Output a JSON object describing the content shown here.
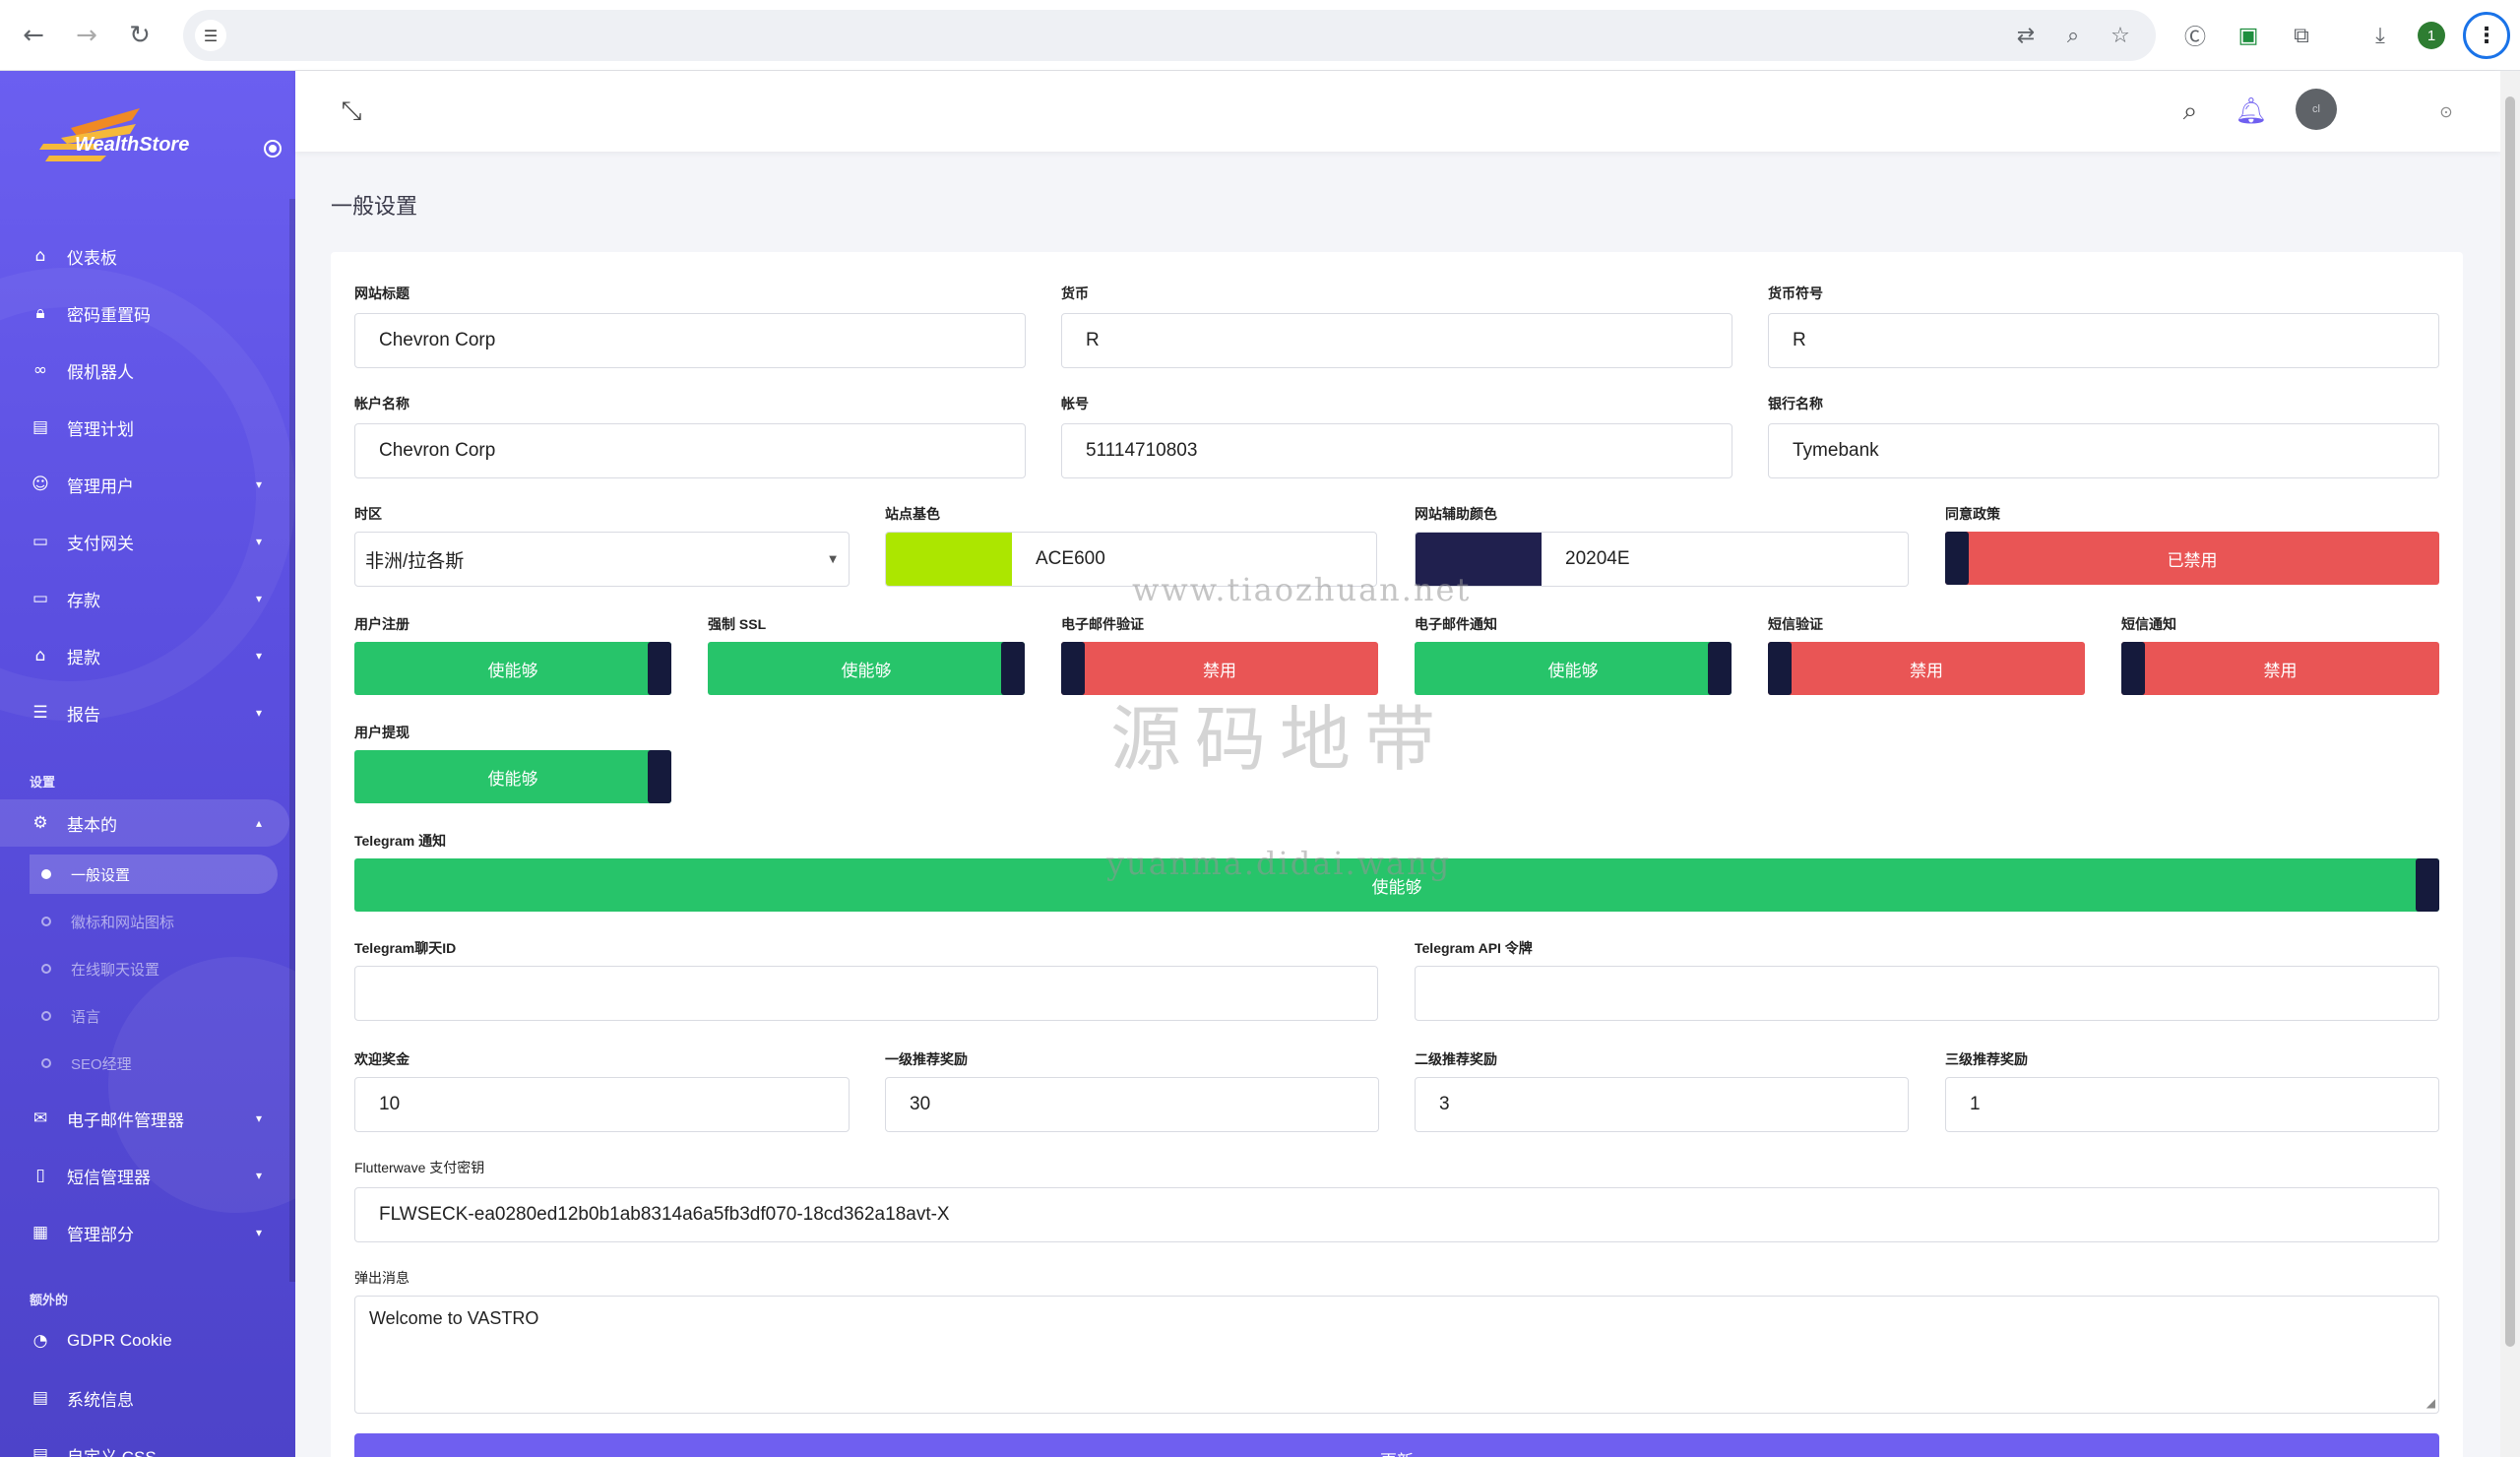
{
  "browser": {
    "back_icon": "arrow-left-icon",
    "forward_icon": "arrow-right-icon",
    "reload_icon": "reload-icon",
    "profile_initial": "1"
  },
  "sidebar": {
    "brand": "WealthStore",
    "items": [
      {
        "label": "仪表板",
        "icon": "home-icon"
      },
      {
        "label": "密码重置码",
        "icon": "lock-icon"
      },
      {
        "label": "假机器人",
        "icon": "link-icon"
      },
      {
        "label": "管理计划",
        "icon": "plan-icon"
      },
      {
        "label": "管理用户",
        "icon": "users-icon"
      },
      {
        "label": "支付网关",
        "icon": "card-icon"
      },
      {
        "label": "存款",
        "icon": "wallet-icon"
      },
      {
        "label": "提款",
        "icon": "bank-icon"
      },
      {
        "label": "报告",
        "icon": "list-icon"
      }
    ],
    "section_settings": "设置",
    "settings_parent": "基本的",
    "settings_sub": [
      "一般设置",
      "徽标和网站图标",
      "在线聊天设置",
      "语言",
      "SEO经理"
    ],
    "more_items": [
      {
        "label": "电子邮件管理器",
        "icon": "mail-icon"
      },
      {
        "label": "短信管理器",
        "icon": "phone-icon"
      },
      {
        "label": "管理部分",
        "icon": "section-icon"
      }
    ],
    "section_extra": "额外的",
    "extra_items": [
      {
        "label": "GDPR Cookie",
        "icon": "cookie-icon"
      },
      {
        "label": "系统信息",
        "icon": "info-icon"
      },
      {
        "label": "自定义 CSS",
        "icon": "css-icon"
      }
    ]
  },
  "header": {
    "avatar_text": "cl"
  },
  "page": {
    "title": "一般设置"
  },
  "form": {
    "site_title_label": "网站标题",
    "site_title": "Chevron Corp",
    "currency_label": "货币",
    "currency": "R",
    "currency_symbol_label": "货币符号",
    "currency_symbol": "R",
    "account_name_label": "帐户名称",
    "account_name": "Chevron Corp",
    "account_no_label": "帐号",
    "account_no": "51114710803",
    "bank_name_label": "银行名称",
    "bank_name": "Tymebank",
    "timezone_label": "时区",
    "timezone": "非洲/拉各斯",
    "base_color_label": "站点基色",
    "base_color": "ACE600",
    "secondary_color_label": "网站辅助颜色",
    "secondary_color": "20204E",
    "policy_label": "同意政策",
    "policy_value": "已禁用",
    "user_reg_label": "用户注册",
    "user_reg": "使能够",
    "force_ssl_label": "强制 SSL",
    "force_ssl": "使能够",
    "email_verify_label": "电子邮件验证",
    "email_verify": "禁用",
    "email_notify_label": "电子邮件通知",
    "email_notify": "使能够",
    "sms_verify_label": "短信验证",
    "sms_verify": "禁用",
    "sms_notify_label": "短信通知",
    "sms_notify": "禁用",
    "user_withdraw_label": "用户提现",
    "user_withdraw": "使能够",
    "telegram_notify_label": "Telegram 通知",
    "telegram_notify": "使能够",
    "telegram_chat_label": "Telegram聊天ID",
    "telegram_chat": "",
    "telegram_api_label": "Telegram API 令牌",
    "telegram_api": "",
    "welcome_bonus_label": "欢迎奖金",
    "welcome_bonus": "10",
    "ref1_label": "一级推荐奖励",
    "ref1": "30",
    "ref2_label": "二级推荐奖励",
    "ref2": "3",
    "ref3_label": "三级推荐奖励",
    "ref3": "1",
    "flutter_label": "Flutterwave 支付密钥",
    "flutter": "FLWSECK-ea0280ed12b0b1ab8314a6a5fb3df070-18cd362a18avt-X",
    "popup_label": "弹出消息",
    "popup": "Welcome to VASTRO",
    "submit": "更新"
  },
  "watermark": {
    "line1": "www.tiaozhuan.net",
    "line2": "源码地带",
    "line3": "yuanma.didai.wang"
  },
  "colors": {
    "enabled": "#27c46a",
    "disabled": "#e95555",
    "base_swatch": "#ACE600",
    "secondary_swatch": "#20204E",
    "accent": "#6f5ff0"
  }
}
